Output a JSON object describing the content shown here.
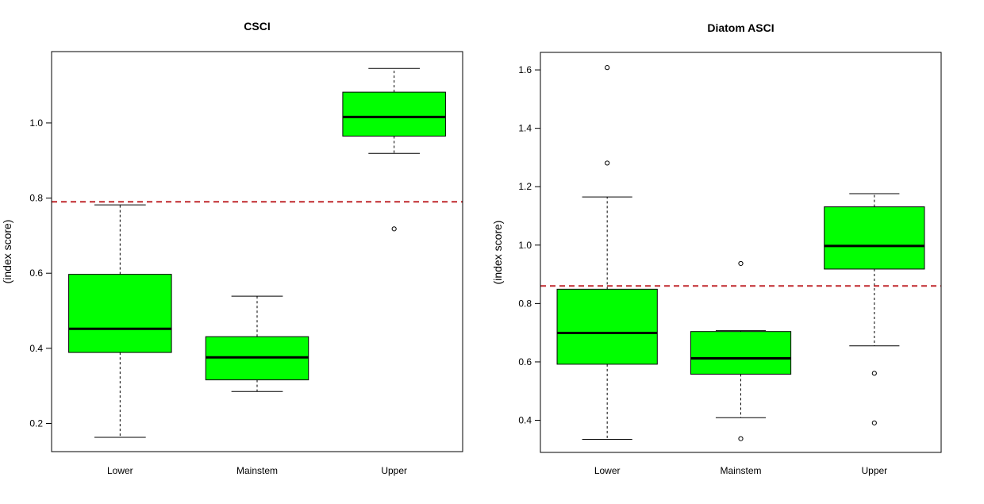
{
  "chart_data": [
    {
      "type": "box",
      "title": "CSCI",
      "xlabel": "",
      "ylabel": "(index score)",
      "categories": [
        "Lower",
        "Mainstem",
        "Upper"
      ],
      "ylim": [
        0.125,
        1.19
      ],
      "yticks": [
        0.2,
        0.4,
        0.6,
        0.8,
        1.0
      ],
      "ytick_labels": [
        "0.2",
        "0.4",
        "0.6",
        "0.8",
        "1.0"
      ],
      "boxes": [
        {
          "category": "Lower",
          "whisker_low": 0.163,
          "q1": 0.389,
          "median": 0.452,
          "q3": 0.597,
          "whisker_high": 0.782,
          "outliers": []
        },
        {
          "category": "Mainstem",
          "whisker_low": 0.285,
          "q1": 0.316,
          "median": 0.376,
          "q3": 0.431,
          "whisker_high": 0.539,
          "outliers": []
        },
        {
          "category": "Upper",
          "whisker_low": 0.919,
          "q1": 0.965,
          "median": 1.016,
          "q3": 1.082,
          "whisker_high": 1.145,
          "outliers": [
            0.718
          ]
        }
      ],
      "reference_line": {
        "value": 0.79,
        "style": "dashed",
        "color": "#c0282d"
      },
      "box_color": "#00ff00"
    },
    {
      "type": "box",
      "title": "Diatom ASCI",
      "xlabel": "",
      "ylabel": "(index score)",
      "categories": [
        "Lower",
        "Mainstem",
        "Upper"
      ],
      "ylim": [
        0.29,
        1.66
      ],
      "yticks": [
        0.4,
        0.6,
        0.8,
        1.0,
        1.2,
        1.4,
        1.6
      ],
      "ytick_labels": [
        "0.4",
        "0.6",
        "0.8",
        "1.0",
        "1.2",
        "1.4",
        "1.6"
      ],
      "boxes": [
        {
          "category": "Lower",
          "whisker_low": 0.335,
          "q1": 0.592,
          "median": 0.699,
          "q3": 0.849,
          "whisker_high": 1.165,
          "outliers": [
            1.281,
            1.608
          ]
        },
        {
          "category": "Mainstem",
          "whisker_low": 0.409,
          "q1": 0.558,
          "median": 0.612,
          "q3": 0.704,
          "whisker_high": 0.707,
          "outliers": [
            0.337,
            0.937
          ]
        },
        {
          "category": "Upper",
          "whisker_low": 0.655,
          "q1": 0.918,
          "median": 0.997,
          "q3": 1.131,
          "whisker_high": 1.176,
          "outliers": [
            0.561,
            0.391
          ]
        }
      ],
      "reference_line": {
        "value": 0.86,
        "style": "dashed",
        "color": "#c0282d"
      },
      "box_color": "#00ff00"
    }
  ]
}
